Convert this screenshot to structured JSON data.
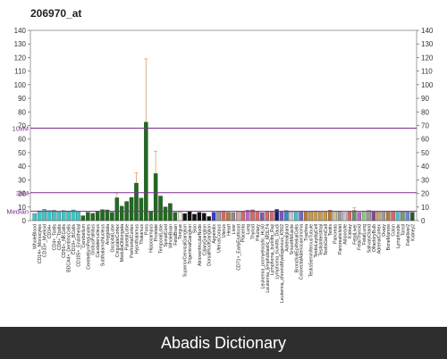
{
  "chart_data": {
    "type": "bar",
    "title": "206970_at",
    "ylim": [
      0,
      140
    ],
    "yticks": [
      0,
      10,
      20,
      30,
      40,
      50,
      60,
      70,
      80,
      90,
      100,
      110,
      120,
      130,
      140
    ],
    "reference_lines": [
      {
        "label": "10xM",
        "value": 68,
        "color": "#7b2d8e"
      },
      {
        "label": "3xM",
        "value": 20.5,
        "color": "#7b2d8e"
      },
      {
        "label": "Median",
        "value": 6.8,
        "color": "#7b2d8e"
      }
    ],
    "categories": [
      "WholeBlood",
      "CD14+_Monocytes",
      "CD33+_Myeloid",
      "CD34+",
      "CD4+_Tcells",
      "CD8+_Tcells",
      "CD56+_NKCells",
      "BDCA4+_DentriticCells",
      "CD19+_BCells",
      "CD105+_Endothelial",
      "Cerebellum",
      "CerebellumPeduncles",
      "GlobusPallidus",
      "Caudatenucleus",
      "SubthalamicNucleus",
      "Amygdala",
      "OccipitalLobe",
      "CingulateCortex",
      "MedullaOblongata",
      "ParietalLobe",
      "PrefrontalCortex",
      "Hypothalamus",
      "Thalamus",
      "Pons",
      "Hippocampus",
      "Prostate",
      "TemporalLobe",
      "SpinalCord",
      "WholeBrain",
      "FetalBrain",
      "Tongue",
      "SuperiorCervicalGanglion",
      "TrigeminalGanglion",
      "Skin",
      "AtrioventricularNode",
      "CiliaryGanglion",
      "DorsalRootGanglion",
      "Appendix",
      "UterusCorpus",
      "Uterus",
      "Heart",
      "Liver",
      "CD71+_EarlyErythroid",
      "Placenta",
      "Lung",
      "Thyroid",
      "Pituitary",
      "Leukemia_promyelocytic_HL60",
      "Leukemia_lymphoblastic_MOLT4",
      "Lymphoma_burkitts_Raji",
      "Lymphoma_burkitts_Daudi",
      "Leukemia_chronicMyelogenous_K562",
      "Adrenalgland",
      "SmoothMuscle",
      "BronchialEpithelialCells",
      "ColorectalAdenocarcinoma",
      "Trachea",
      "TestisSeminiferousTubule",
      "TestisLeydigCell",
      "TestisInterstitial",
      "TestisGermCell",
      "Testis",
      "Pancreas",
      "PancreaticIslet",
      "Adipocyte",
      "Kidney",
      "FetalLiver",
      "FetalThyroid",
      "FetalLung",
      "SalivaryGland",
      "OlfactoryBulb",
      "AdrenalCortex",
      "Ovary",
      "BoneMarrow",
      "Colon",
      "Lymphnode",
      "Tonsil",
      "Fetalliver2",
      "Kidney2"
    ],
    "values": [
      5.2,
      7.2,
      8.3,
      7.4,
      7.6,
      6.6,
      7.4,
      7.1,
      7.9,
      6.6,
      3.6,
      6.1,
      5.3,
      6.9,
      8.1,
      7.9,
      6.1,
      16.8,
      10.6,
      14.1,
      17.1,
      27.6,
      16.6,
      72.5,
      6.9,
      34.6,
      18.1,
      10.1,
      12.6,
      6.0,
      6.3,
      5.2,
      6.9,
      4.7,
      6.1,
      5.5,
      3.0,
      6.1,
      6.6,
      6.9,
      6.1,
      5.9,
      6.9,
      6.6,
      7.6,
      7.9,
      6.6,
      5.9,
      6.6,
      6.9,
      8.2,
      6.9,
      7.4,
      6.4,
      6.6,
      6.9,
      6.6,
      6.6,
      7.1,
      6.6,
      6.6,
      7.6,
      6.9,
      6.9,
      5.9,
      6.6,
      7.4,
      6.1,
      6.9,
      7.4,
      6.9,
      6.4,
      6.9,
      6.6,
      7.1,
      6.9,
      6.4,
      6.4,
      6.1
    ],
    "errors": [
      0,
      0,
      0,
      0,
      0,
      0,
      0,
      0,
      0,
      0,
      0,
      0,
      0,
      0,
      0,
      0,
      0,
      3.5,
      0,
      0,
      0,
      7.5,
      0,
      46.5,
      0,
      16.5,
      0,
      0,
      0,
      0,
      0,
      0,
      0,
      0,
      0,
      0,
      0,
      0,
      0,
      0,
      0,
      0,
      0,
      0,
      0,
      0,
      0,
      0,
      0,
      0,
      0,
      0,
      0,
      0,
      0,
      0,
      0,
      0,
      0,
      0,
      0,
      0,
      0,
      0,
      0,
      0,
      2.0,
      0,
      0,
      0,
      0,
      0,
      0,
      0,
      0,
      0,
      0,
      0,
      0
    ],
    "colors": [
      "#3fc6c6",
      "#3fc6c6",
      "#3fc6c6",
      "#3fc6c6",
      "#3fc6c6",
      "#3fc6c6",
      "#3fc6c6",
      "#3fc6c6",
      "#3fc6c6",
      "#3fc6c6",
      "#1f6b1f",
      "#1f6b1f",
      "#1f6b1f",
      "#1f6b1f",
      "#1f6b1f",
      "#1f6b1f",
      "#1f6b1f",
      "#1f6b1f",
      "#1f6b1f",
      "#1f6b1f",
      "#1f6b1f",
      "#1f6b1f",
      "#1f6b1f",
      "#1f6b1f",
      "#1f6b1f",
      "#1f6b1f",
      "#1f6b1f",
      "#1f6b1f",
      "#1f6b1f",
      "#1f6b1f",
      "#f0e6e0",
      "#111111",
      "#111111",
      "#111111",
      "#111111",
      "#111111",
      "#111111",
      "#3a3ac8",
      "#9a9a9a",
      "#d06a6a",
      "#b87a3a",
      "#8a8a8a",
      "#d6a0a0",
      "#d06a6a",
      "#b86ac8",
      "#d06a6a",
      "#d06a6a",
      "#7a5ab8",
      "#d06a6a",
      "#d06a6a",
      "#1a1a6a",
      "#7a5ab8",
      "#3a8ac8",
      "#c8c8c8",
      "#3fc6c6",
      "#6a6ad0",
      "#b87a3a",
      "#c89a4a",
      "#c89a4a",
      "#c89a4a",
      "#c89a4a",
      "#b87a3a",
      "#d0c0a0",
      "#9a9a9a",
      "#c8c8c8",
      "#d06a6a",
      "#6a8a6a",
      "#b86ac8",
      "#8ac88a",
      "#9a9a9a",
      "#8a4a8a",
      "#c8a86a",
      "#9a9aa0",
      "#b87a3a",
      "#d06a6a",
      "#5ab8c8",
      "#7a9a7a",
      "#6a8ac8",
      "#2a5a2a"
    ]
  }
}
